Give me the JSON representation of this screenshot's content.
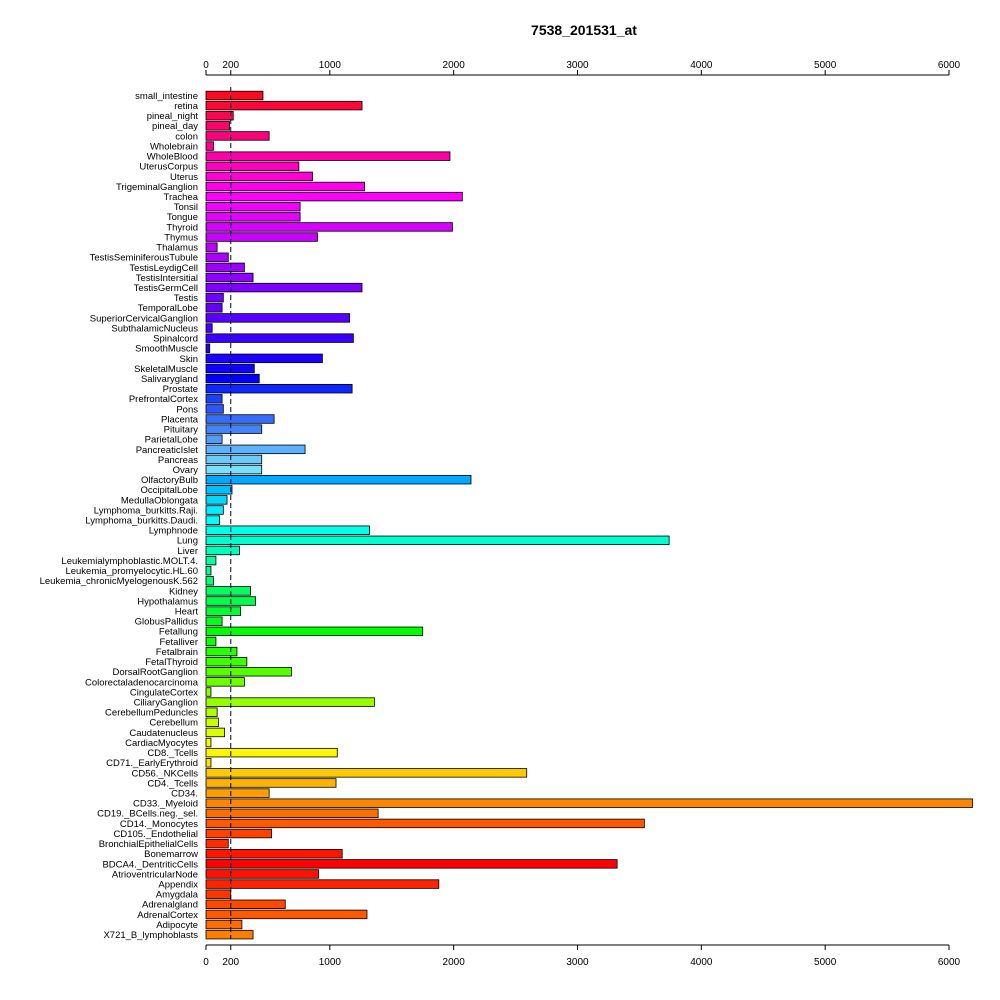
{
  "chart_data": {
    "type": "bar",
    "orientation": "horizontal",
    "title": "7538_201531_at",
    "xlim": [
      0,
      6000
    ],
    "xticks": [
      0,
      200,
      1000,
      2000,
      3000,
      4000,
      5000,
      6000
    ],
    "reference_line": 200,
    "axes": [
      "top",
      "bottom"
    ],
    "grid": false,
    "categories": [
      "small_intestine",
      "retina",
      "pineal_night",
      "pineal_day",
      "colon",
      "Wholebrain",
      "WholeBlood",
      "UterusCorpus",
      "Uterus",
      "TrigeminalGanglion",
      "Trachea",
      "Tonsil",
      "Tongue",
      "Thyroid",
      "Thymus",
      "Thalamus",
      "TestisSeminiferousTubule",
      "TestisLeydigCell",
      "TestisIntersitial",
      "TestisGermCell",
      "Testis",
      "TemporalLobe",
      "SuperiorCervicalGanglion",
      "SubthalamicNucleus",
      "Spinalcord",
      "SmoothMuscle",
      "Skin",
      "SkeletalMuscle",
      "Salivarygland",
      "Prostate",
      "PrefrontalCortex",
      "Pons",
      "Placenta",
      "Pituitary",
      "ParietalLobe",
      "PancreaticIslet",
      "Pancreas",
      "Ovary",
      "OlfactoryBulb",
      "OccipitalLobe",
      "MedullaOblongata",
      "Lymphoma_burkitts.Raji.",
      "Lymphoma_burkitts.Daudi.",
      "Lymphnode",
      "Lung",
      "Liver",
      "Leukemialymphoblastic.MOLT.4.",
      "Leukemia_promyelocytic.HL.60",
      "Leukemia_chronicMyelogenousK.562",
      "Kidney",
      "Hypothalamus",
      "Heart",
      "GlobusPallidus",
      "Fetallung",
      "Fetalliver",
      "Fetalbrain",
      "FetalThyroid",
      "DorsalRootGanglion",
      "Colorectaladenocarcinoma",
      "CingulateCortex",
      "CiliaryGanglion",
      "CerebellumPeduncles",
      "Cerebellum",
      "Caudatenucleus",
      "CardiacMyocytes",
      "CD8._Tcells",
      "CD71._EarlyErythroid",
      "CD56._NKCells",
      "CD4._Tcells",
      "CD34.",
      "CD33._Myeloid",
      "CD19._BCells.neg._sel.",
      "CD14._Monocytes",
      "CD105._Endothelial",
      "BronchialEpithelialCells",
      "Bonemarrow",
      "BDCA4._DentriticCells",
      "AtrioventricularNode",
      "Appendix",
      "Amygdala",
      "Adrenalgland",
      "AdrenalCortex",
      "Adipocyte",
      "X721_B_lymphoblasts"
    ],
    "values": [
      460,
      1260,
      220,
      190,
      510,
      60,
      1970,
      750,
      860,
      1280,
      2070,
      760,
      760,
      1990,
      900,
      90,
      180,
      310,
      380,
      1260,
      140,
      130,
      1160,
      50,
      1190,
      30,
      940,
      390,
      430,
      1180,
      130,
      140,
      550,
      450,
      130,
      800,
      450,
      450,
      2140,
      210,
      170,
      140,
      110,
      1320,
      3740,
      270,
      80,
      40,
      60,
      360,
      400,
      280,
      130,
      1750,
      80,
      250,
      330,
      690,
      310,
      40,
      1360,
      90,
      100,
      150,
      40,
      1060,
      40,
      2590,
      1050,
      510,
      6190,
      1390,
      3540,
      530,
      180,
      1100,
      3320,
      910,
      1880,
      200,
      640,
      1300,
      290,
      380
    ],
    "colors": [
      "#FF0A22",
      "#FF0839",
      "#FF054F",
      "#FF0366",
      "#FF007C",
      "#FF0092",
      "#FF00A8",
      "#FF00BF",
      "#FF00D5",
      "#FF00EB",
      "#FF00FF",
      "#F100FF",
      "#E300FF",
      "#D500FF",
      "#C700FF",
      "#B900FF",
      "#AB00FF",
      "#9C00FF",
      "#8E00FF",
      "#8000FF",
      "#7200FF",
      "#6400FF",
      "#5600FF",
      "#4800FF",
      "#3A00FF",
      "#2C00FF",
      "#1D00FF",
      "#0F00FF",
      "#0100FF",
      "#0D28FF",
      "#1A3FFF",
      "#2856FF",
      "#356DFF",
      "#4284FF",
      "#4F9BFF",
      "#5DB2FF",
      "#6ACAFF",
      "#78E1FF",
      "#00A9FF",
      "#00BFFF",
      "#00D6FF",
      "#00ECFF",
      "#00FFFC",
      "#00FFE6",
      "#00FFCF",
      "#00FFB9",
      "#00FFA2",
      "#00FF8C",
      "#00FF75",
      "#00FF5F",
      "#00FF48",
      "#00FF32",
      "#00FF1C",
      "#00FF05",
      "#11FF00",
      "#28FF00",
      "#3EFF00",
      "#55FF00",
      "#6BFF00",
      "#82FF00",
      "#98FF00",
      "#AFFF00",
      "#C5FF00",
      "#DCFF00",
      "#F2FF00",
      "#FFF600",
      "#FFE000",
      "#FFC900",
      "#FFB300",
      "#FF9C00",
      "#FF8600",
      "#FF6F00",
      "#FF5900",
      "#FF4200",
      "#FF2C00",
      "#FF1500",
      "#FF0000",
      "#FF1200",
      "#FF2400",
      "#FF3600",
      "#FF4800",
      "#FF5A00",
      "#FF6C00",
      "#FF7E00"
    ]
  }
}
